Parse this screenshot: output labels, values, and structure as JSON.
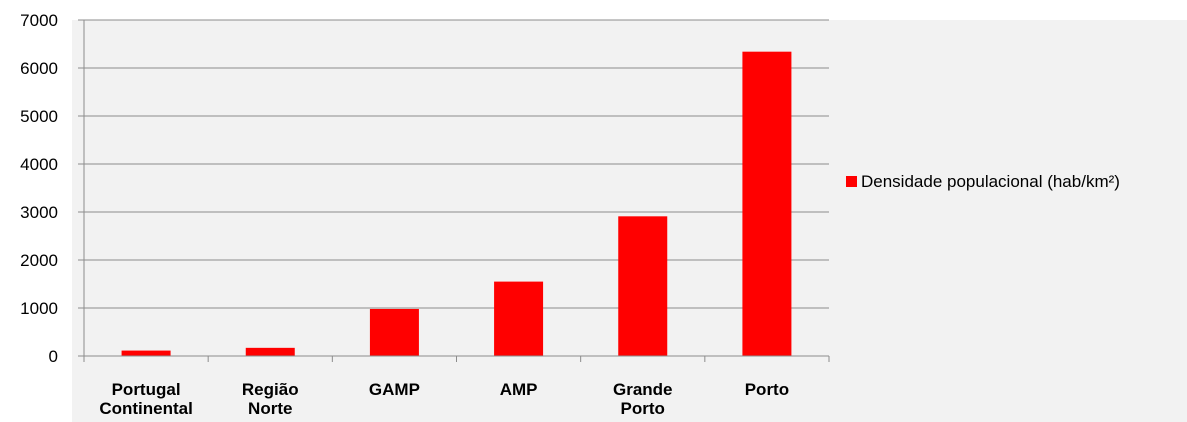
{
  "chart_data": {
    "type": "bar",
    "categories": [
      [
        "Portugal",
        "Continental"
      ],
      [
        "Região",
        "Norte"
      ],
      [
        "GAMP"
      ],
      [
        "AMP"
      ],
      [
        "Grande",
        "Porto"
      ],
      [
        "Porto"
      ]
    ],
    "series": [
      {
        "name": "Densidade populacional (hab/km²)",
        "values": [
          113,
          170,
          980,
          1550,
          2910,
          6340
        ],
        "color": "#ff0000"
      }
    ],
    "yticks": [
      "0",
      "1000",
      "2000",
      "3000",
      "4000",
      "5000",
      "6000",
      "7000"
    ],
    "ylim": [
      0,
      7000
    ],
    "grid": true,
    "legend_position": "right",
    "background_color": "#f2f2f2"
  }
}
